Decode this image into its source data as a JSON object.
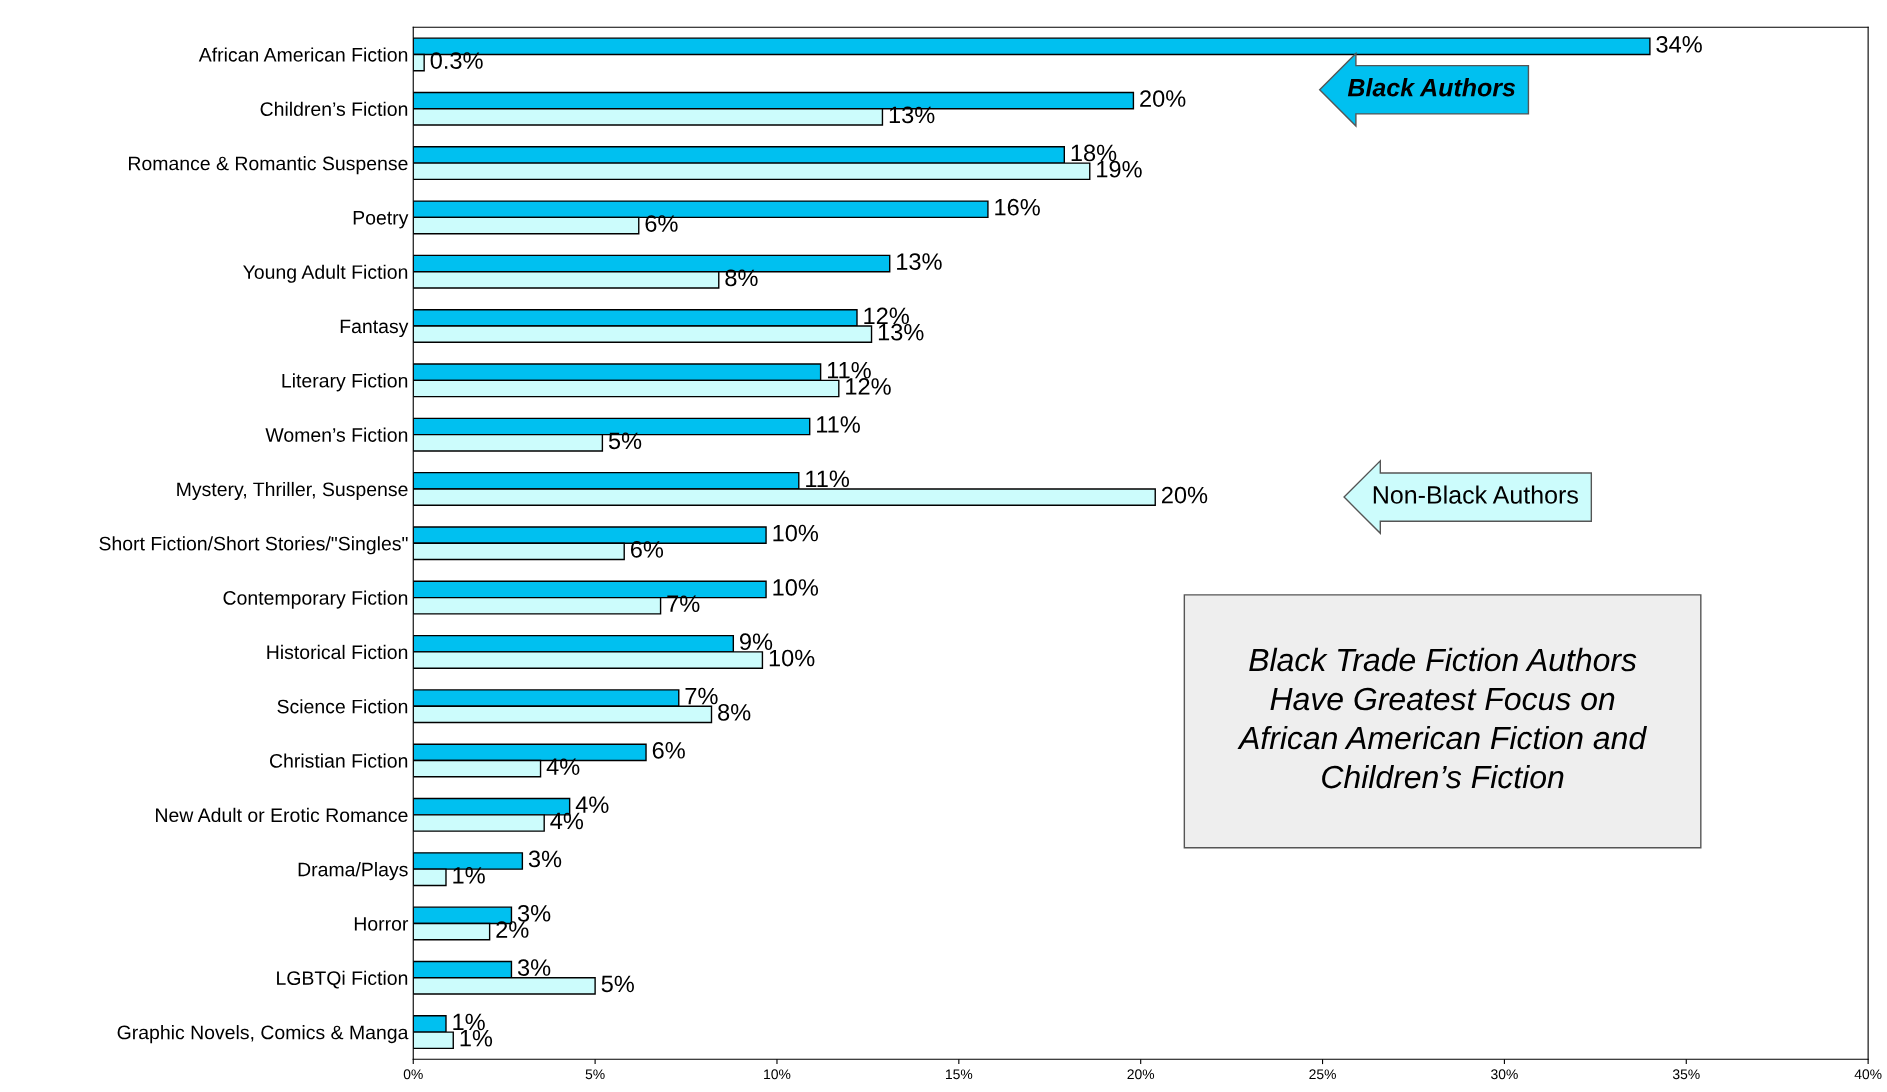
{
  "chart_data": {
    "type": "bar",
    "orientation": "horizontal",
    "categories": [
      "African American Fiction",
      "Children’s Fiction",
      "Romance & Romantic Suspense",
      "Poetry",
      "Young Adult Fiction",
      "Fantasy",
      "Literary Fiction",
      "Women’s Fiction",
      "Mystery, Thriller, Suspense",
      "Short Fiction/Short Stories/\"Singles\"",
      "Contemporary Fiction",
      "Historical Fiction",
      "Science Fiction",
      "Christian Fiction",
      "New Adult or Erotic Romance",
      "Drama/Plays",
      "Horror",
      "LGBTQi Fiction",
      "Graphic Novels, Comics & Manga"
    ],
    "series": [
      {
        "name": "Black Authors",
        "color": "#00c0f0",
        "values": [
          34.0,
          19.8,
          17.9,
          15.8,
          13.1,
          12.2,
          11.2,
          10.9,
          10.6,
          9.7,
          9.7,
          8.8,
          7.3,
          6.4,
          4.3,
          3.0,
          2.7,
          2.7,
          0.9
        ],
        "value_labels": [
          "34%",
          "20%",
          "18%",
          "16%",
          "13%",
          "12%",
          "11%",
          "11%",
          "11%",
          "10%",
          "10%",
          "9%",
          "7%",
          "6%",
          "4%",
          "3%",
          "3%",
          "3%",
          "1%"
        ]
      },
      {
        "name": "Non-Black Authors",
        "color": "#ccfcfc",
        "values": [
          0.3,
          12.9,
          18.6,
          6.2,
          8.4,
          12.6,
          11.7,
          5.2,
          20.4,
          5.8,
          6.8,
          9.6,
          8.2,
          3.5,
          3.6,
          0.9,
          2.1,
          5.0,
          1.1
        ],
        "value_labels": [
          "0.3%",
          "13%",
          "19%",
          "6%",
          "8%",
          "13%",
          "12%",
          "5%",
          "20%",
          "6%",
          "7%",
          "10%",
          "8%",
          "4%",
          "4%",
          "1%",
          "2%",
          "5%",
          "1%"
        ]
      }
    ],
    "xlim": [
      0,
      40
    ],
    "xticks": [
      {
        "value": 0,
        "label": "0%"
      },
      {
        "value": 5,
        "label": "5%"
      },
      {
        "value": 10,
        "label": "10%"
      },
      {
        "value": 15,
        "label": "15%"
      },
      {
        "value": 20,
        "label": "20%"
      },
      {
        "value": 25,
        "label": "25%"
      },
      {
        "value": 30,
        "label": "30%"
      },
      {
        "value": 35,
        "label": "35%"
      },
      {
        "value": 40,
        "label": "40%"
      }
    ],
    "grid": false,
    "legend": false,
    "annotations": [
      "Black Trade Fiction Authors\nHave Greatest Focus on\nAfrican American Fiction and\nChildren’s Fiction"
    ]
  }
}
